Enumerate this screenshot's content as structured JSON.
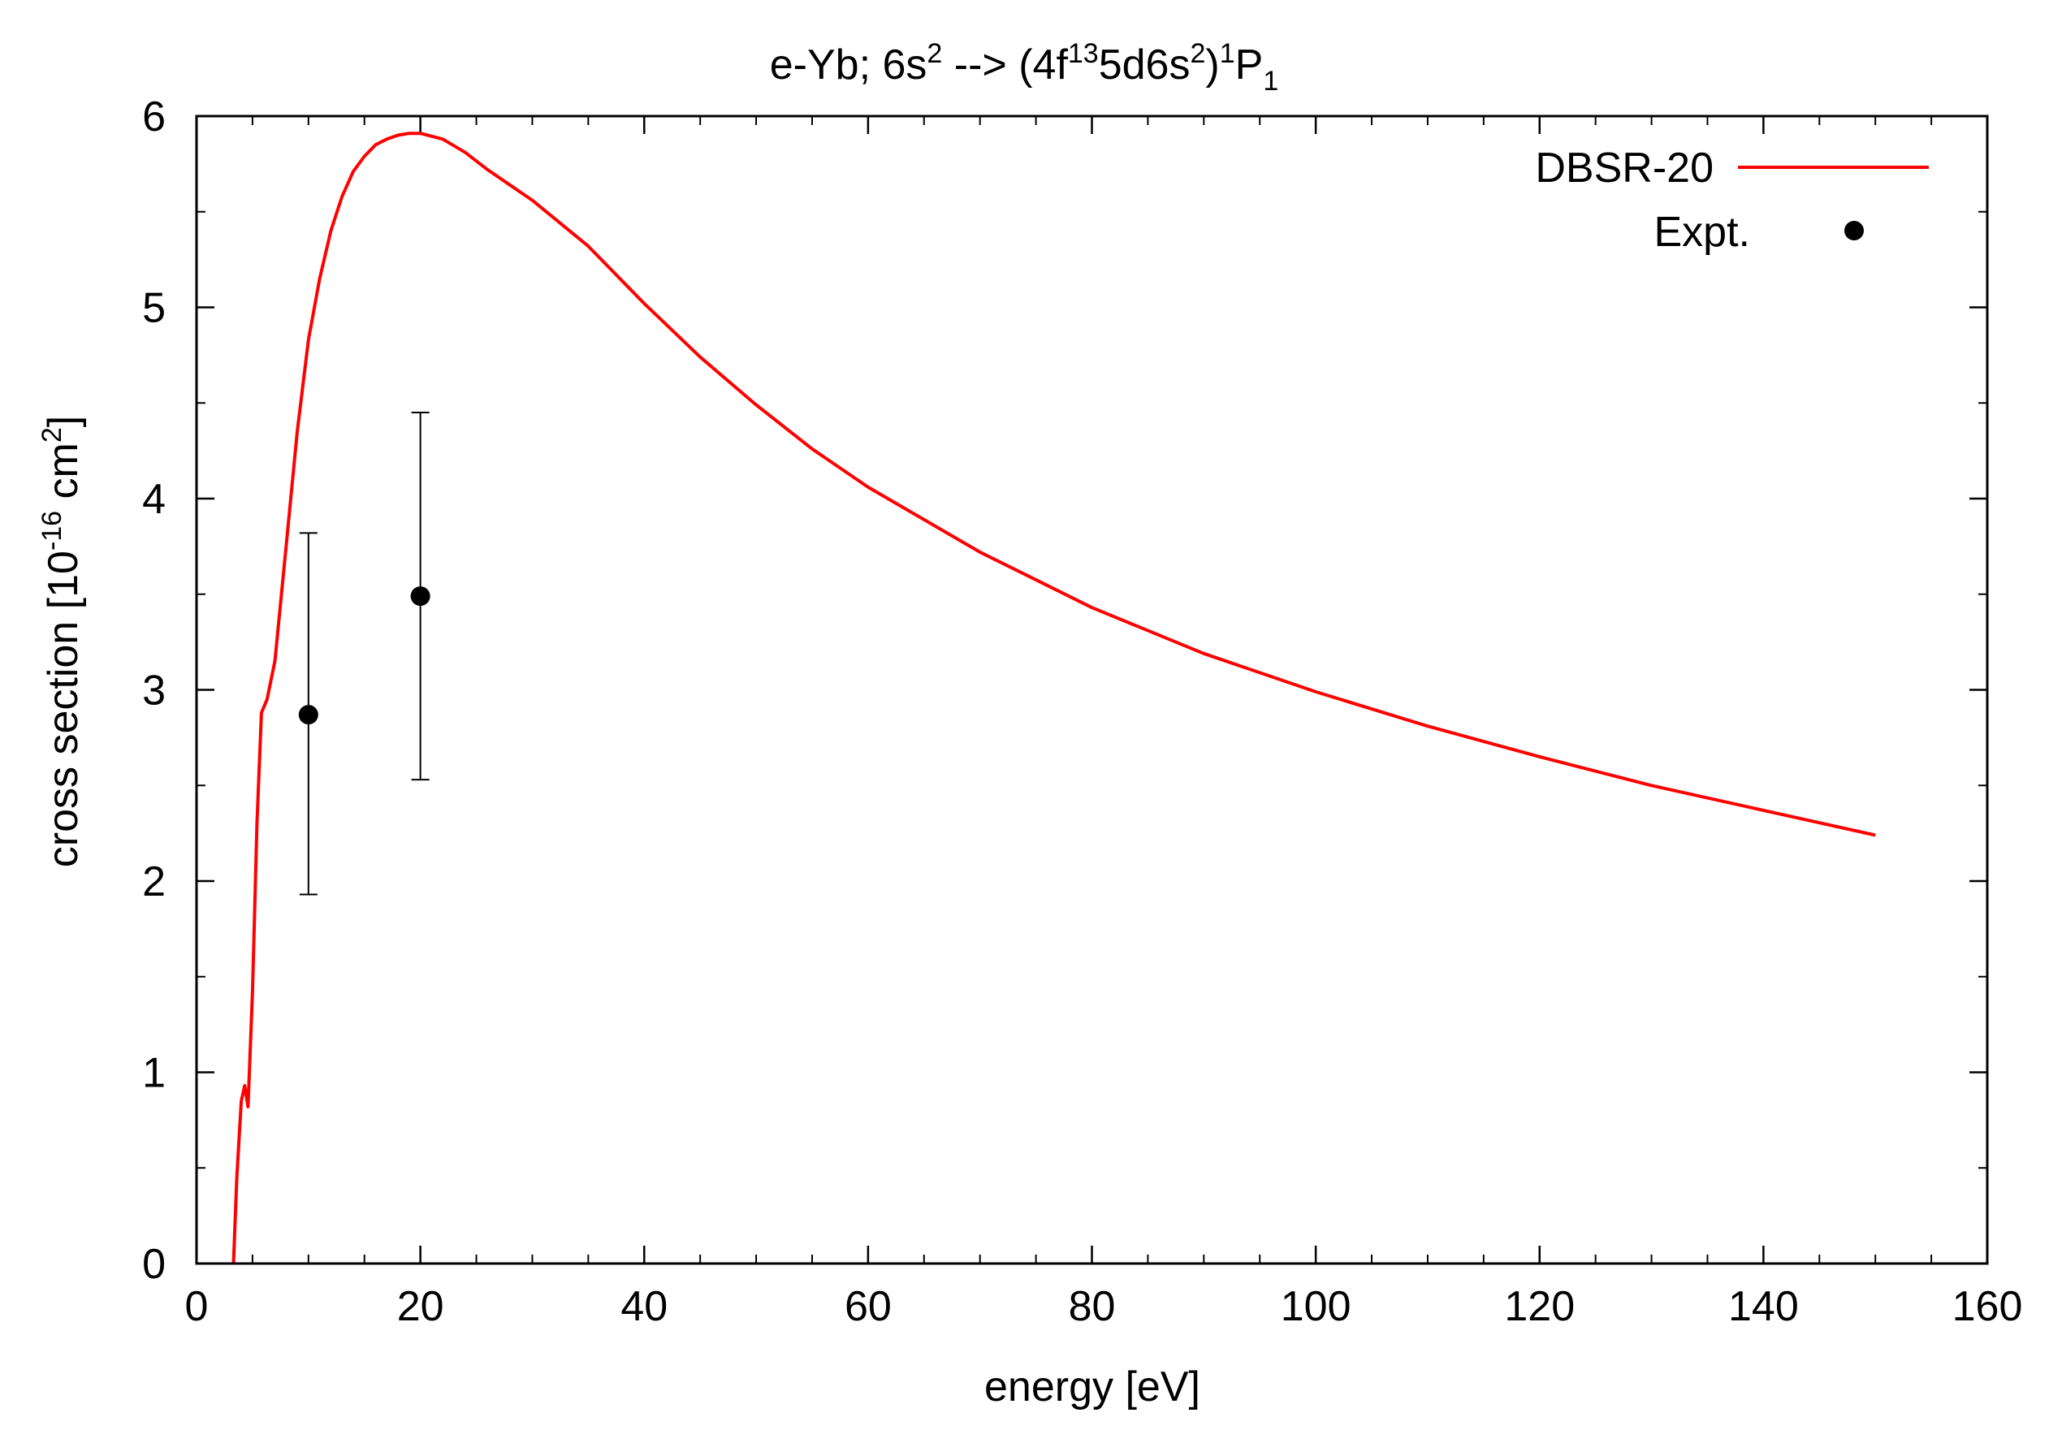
{
  "chart_data": {
    "type": "line",
    "title": {
      "prefix": "e-Yb; 6s",
      "sup1": "2",
      "arrow": " --> (4f",
      "sup2": "13",
      "mid": "5d6s",
      "sup3": "2",
      "close": ")",
      "sup4": "1",
      "term": "P",
      "sub1": "1"
    },
    "xlabel": "energy [eV]",
    "ylabel": {
      "prefix": "cross section [10",
      "sup1": "-16",
      "unit": " cm",
      "sup2": "2",
      "close": "]"
    },
    "xlim": [
      0,
      160
    ],
    "ylim": [
      0,
      6
    ],
    "xticks": [
      0,
      20,
      40,
      60,
      80,
      100,
      120,
      140,
      160
    ],
    "yticks": [
      0,
      1,
      2,
      3,
      4,
      5,
      6
    ],
    "x_minor_step": 5,
    "y_minor_step": 0.5,
    "grid": false,
    "legend_position": "top-right",
    "series": [
      {
        "name": "DBSR-20",
        "kind": "line",
        "color": "#ff0000",
        "x": [
          3.3,
          3.6,
          4.0,
          4.3,
          4.6,
          4.75,
          5.0,
          5.4,
          5.8,
          6.3,
          7.0,
          8.0,
          9.0,
          10.0,
          11.0,
          12.0,
          13.0,
          14.0,
          15.0,
          16.0,
          17.0,
          18.0,
          19.0,
          20.0,
          22.0,
          24.0,
          26.0,
          28.0,
          30.0,
          35.0,
          40.0,
          45.0,
          50.0,
          55.0,
          60.0,
          70.0,
          80.0,
          90.0,
          100.0,
          110.0,
          120.0,
          130.0,
          140.0,
          150.0
        ],
        "y": [
          0.0,
          0.45,
          0.85,
          0.93,
          0.82,
          1.05,
          1.42,
          2.3,
          2.88,
          2.95,
          3.15,
          3.75,
          4.35,
          4.83,
          5.15,
          5.4,
          5.58,
          5.71,
          5.79,
          5.85,
          5.88,
          5.9,
          5.91,
          5.91,
          5.88,
          5.81,
          5.72,
          5.64,
          5.56,
          5.32,
          5.02,
          4.74,
          4.49,
          4.26,
          4.06,
          3.72,
          3.43,
          3.19,
          2.99,
          2.81,
          2.65,
          2.5,
          2.37,
          2.24
        ]
      },
      {
        "name": "Expt.",
        "kind": "points",
        "color": "#000000",
        "x": [
          10,
          20
        ],
        "y": [
          2.87,
          3.49
        ],
        "yerr_low": [
          1.93,
          2.53
        ],
        "yerr_high": [
          3.82,
          4.45
        ]
      }
    ]
  }
}
